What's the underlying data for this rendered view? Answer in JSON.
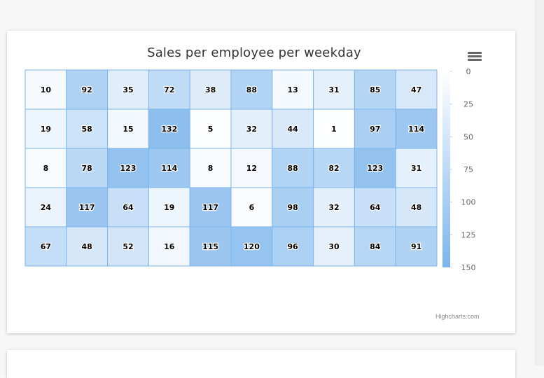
{
  "page": {
    "credits": "Highcharts.com"
  },
  "chart_data": {
    "type": "heatmap",
    "title": "Sales per employee per weekday",
    "rows": [
      [
        10,
        92,
        35,
        72,
        38,
        88,
        13,
        31,
        85,
        47
      ],
      [
        19,
        58,
        15,
        132,
        5,
        32,
        44,
        1,
        97,
        114
      ],
      [
        8,
        78,
        123,
        114,
        8,
        12,
        88,
        82,
        123,
        31
      ],
      [
        24,
        117,
        64,
        19,
        117,
        6,
        98,
        32,
        64,
        48
      ],
      [
        67,
        48,
        52,
        16,
        115,
        120,
        96,
        30,
        84,
        91
      ]
    ],
    "color_axis": {
      "min": 0,
      "max": 150,
      "ticks": [
        0,
        25,
        50,
        75,
        100,
        125,
        150
      ],
      "min_color": "#FFFFFF",
      "max_color": "#7CB5EC",
      "placement": "right"
    },
    "cell_border_color": "#7CB5EC"
  }
}
